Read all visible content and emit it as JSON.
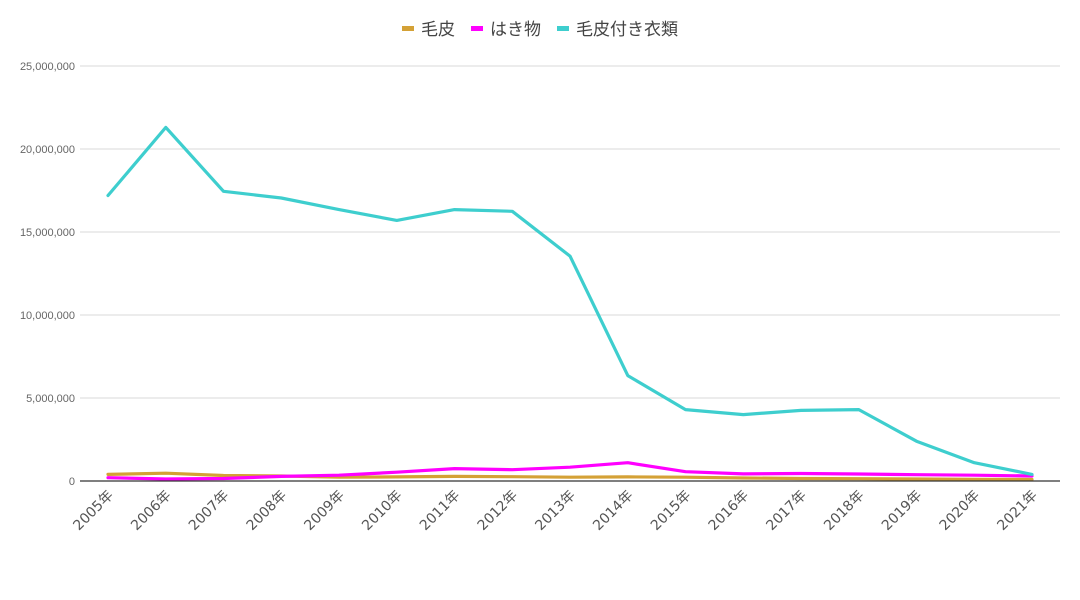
{
  "chart_data": {
    "type": "line",
    "title": "",
    "xlabel": "",
    "ylabel": "",
    "categories": [
      "2005年",
      "2006年",
      "2007年",
      "2008年",
      "2009年",
      "2010年",
      "2011年",
      "2012年",
      "2013年",
      "2014年",
      "2015年",
      "2016年",
      "2017年",
      "2018年",
      "2019年",
      "2020年",
      "2021年"
    ],
    "y_ticks": [
      "0",
      "5,000,000",
      "10,000,000",
      "15,000,000",
      "20,000,000",
      "25,000,000"
    ],
    "ylim": [
      0,
      25000000
    ],
    "grid": true,
    "legend_position": "top",
    "series": [
      {
        "name": "毛皮",
        "color": "#D4A136",
        "values": [
          400000,
          470000,
          330000,
          300000,
          230000,
          250000,
          280000,
          260000,
          230000,
          250000,
          230000,
          180000,
          150000,
          140000,
          120000,
          100000,
          90000
        ]
      },
      {
        "name": "はき物",
        "color": "#FF00FF",
        "values": [
          200000,
          120000,
          150000,
          280000,
          350000,
          530000,
          750000,
          680000,
          830000,
          1100000,
          560000,
          430000,
          450000,
          420000,
          380000,
          350000,
          300000
        ]
      },
      {
        "name": "毛皮付き衣類",
        "color": "#3ECECE",
        "values": [
          17200000,
          21300000,
          17450000,
          17050000,
          16350000,
          15700000,
          16350000,
          16250000,
          13550000,
          6350000,
          4300000,
          4000000,
          4250000,
          4300000,
          2400000,
          1100000,
          400000
        ]
      }
    ]
  }
}
